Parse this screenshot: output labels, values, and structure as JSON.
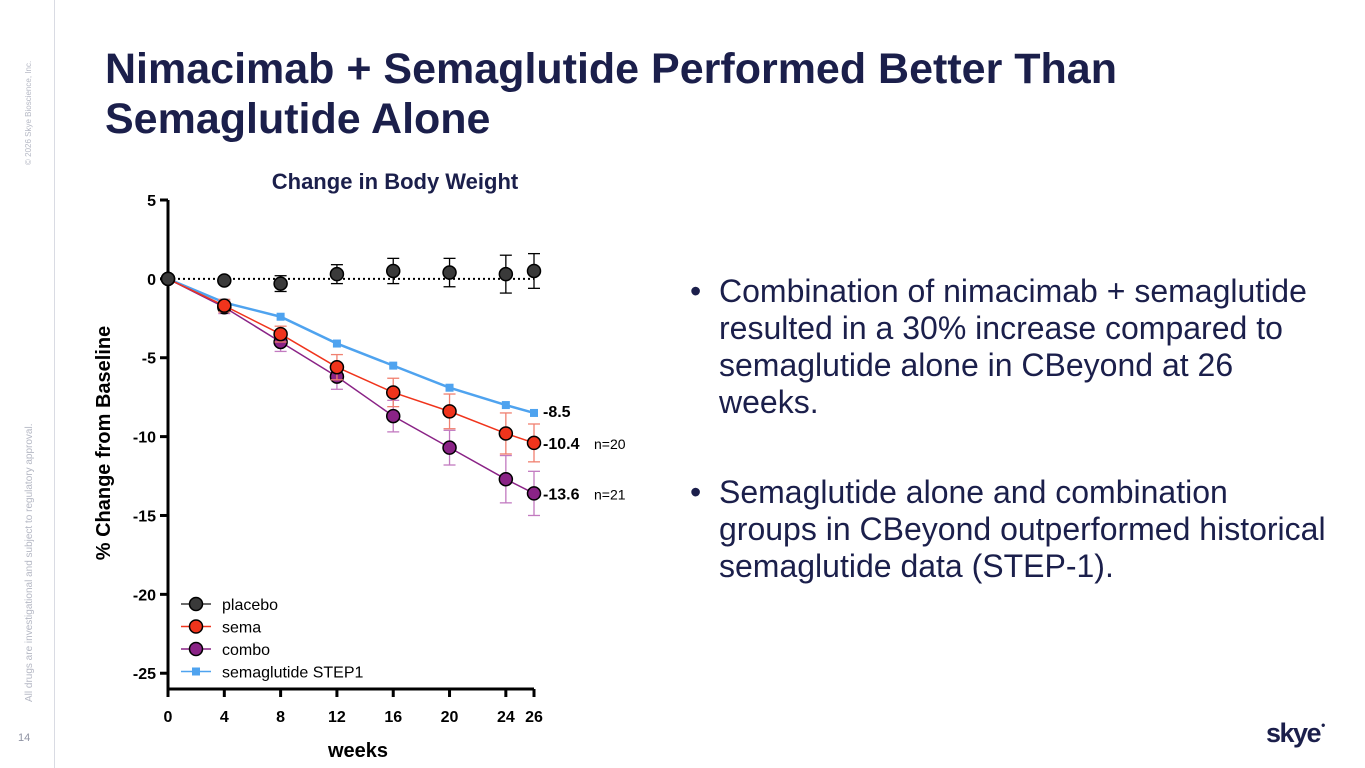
{
  "slide": {
    "title": "Nimacimab + Semaglutide Performed Better Than Semaglutide Alone",
    "page_number": "14",
    "copyright": "© 2026 Skye Bioscience, Inc.",
    "disclaimer": "All drugs are investigational and subject to regulatory approval.",
    "logo": "skye",
    "bullets": [
      "Combination of nimacimab + semaglutide resulted in a 30% increase compared to semaglutide alone in CBeyond at 26 weeks.",
      "Semaglutide alone and combination groups in CBeyond outperformed historical semaglutide data (STEP-1)."
    ],
    "bullet_char": "•"
  },
  "colors": {
    "navy": "#1b1f4b",
    "placebo": "#3a3a3a",
    "sema": "#f0341c",
    "combo": "#8a2386",
    "step1": "#4fa3ef",
    "errbar_sema": "#f08070",
    "errbar_combo": "#c27ac0"
  },
  "chart_data": {
    "type": "line",
    "title": "Change in Body Weight",
    "xlabel": "weeks",
    "ylabel": "% Change from Baseline",
    "xlim": [
      0,
      26
    ],
    "ylim": [
      -26,
      5
    ],
    "xticks": [
      0,
      4,
      8,
      12,
      16,
      20,
      24,
      26
    ],
    "yticks": [
      5,
      0,
      -5,
      -10,
      -15,
      -20,
      -25
    ],
    "legend_position": "bottom-left",
    "reference_line": {
      "y": 0,
      "style": "dotted"
    },
    "series": [
      {
        "name": "placebo",
        "marker": "circle",
        "color": "#3a3a3a",
        "x": [
          0,
          4,
          8,
          12,
          16,
          20,
          24,
          26
        ],
        "y": [
          0,
          -0.1,
          -0.3,
          0.3,
          0.5,
          0.4,
          0.3,
          0.5
        ],
        "err": [
          0,
          0.2,
          0.5,
          0.6,
          0.8,
          0.9,
          1.2,
          1.1
        ],
        "line": "none"
      },
      {
        "name": "sema",
        "marker": "circle",
        "color": "#f0341c",
        "x": [
          0,
          4,
          8,
          12,
          16,
          20,
          24,
          26
        ],
        "y": [
          0,
          -1.7,
          -3.5,
          -5.6,
          -7.2,
          -8.4,
          -9.8,
          -10.4
        ],
        "err": [
          0,
          0.4,
          0.5,
          0.8,
          0.9,
          1.1,
          1.3,
          1.2
        ],
        "line": "solid"
      },
      {
        "name": "combo",
        "marker": "circle",
        "color": "#8a2386",
        "x": [
          0,
          4,
          8,
          12,
          16,
          20,
          24,
          26
        ],
        "y": [
          0,
          -1.8,
          -4.0,
          -6.2,
          -8.7,
          -10.7,
          -12.7,
          -13.6
        ],
        "err": [
          0,
          0.4,
          0.6,
          0.8,
          1.0,
          1.1,
          1.5,
          1.4
        ],
        "line": "solid"
      },
      {
        "name": "semaglutide STEP1",
        "marker": "square",
        "color": "#4fa3ef",
        "x": [
          0,
          4,
          8,
          12,
          16,
          20,
          24,
          26
        ],
        "y": [
          0,
          -1.5,
          -2.4,
          -4.1,
          -5.5,
          -6.9,
          -8.0,
          -8.5
        ],
        "err": [
          0,
          0,
          0,
          0,
          0,
          0,
          0,
          0
        ],
        "line": "solid"
      }
    ],
    "end_labels": [
      {
        "series": "semaglutide STEP1",
        "value": -8.5,
        "text": "-8.5",
        "n": ""
      },
      {
        "series": "sema",
        "value": -10.4,
        "text": "-10.4",
        "n": "n=20"
      },
      {
        "series": "combo",
        "value": -13.6,
        "text": "-13.6",
        "n": "n=21"
      }
    ]
  }
}
